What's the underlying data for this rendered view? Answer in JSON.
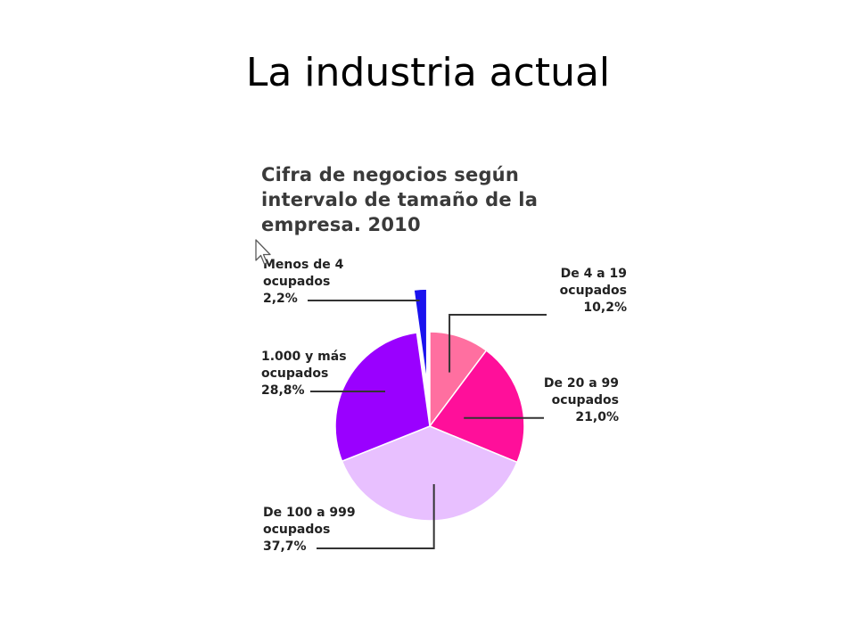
{
  "slide": {
    "title": "La industria actual"
  },
  "chart_data": {
    "type": "pie",
    "title": "Cifra de negocios según intervalo de tamaño de la empresa. 2010",
    "title_lines": [
      "Cifra de negocios según",
      "intervalo de tamaño de la",
      "empresa. 2010"
    ],
    "slices": [
      {
        "category": "De 4 a 19 ocupados",
        "lines": [
          "De 4 a 19",
          "ocupados"
        ],
        "value_label": "10,2%",
        "value": 10.2,
        "color": "#ff6fa0"
      },
      {
        "category": "De 20 a 99 ocupados",
        "lines": [
          "De 20 a 99",
          "ocupados"
        ],
        "value_label": "21,0%",
        "value": 21.0,
        "color": "#ff0f9a"
      },
      {
        "category": "De 100 a 999 ocupados",
        "lines": [
          "De 100 a 999",
          "ocupados"
        ],
        "value_label": "37,7%",
        "value": 37.7,
        "color": "#e8c0ff"
      },
      {
        "category": "1.000 y más ocupados",
        "lines": [
          "1.000 y más",
          "ocupados"
        ],
        "value_label": "28,8%",
        "value": 28.8,
        "color": "#9a00ff"
      },
      {
        "category": "Menos de 4 ocupados",
        "lines": [
          "Menos de 4",
          "ocupados"
        ],
        "value_label": "2,2%",
        "value": 2.2,
        "color": "#1a12ee",
        "exploded": true
      }
    ],
    "legend": "none"
  }
}
